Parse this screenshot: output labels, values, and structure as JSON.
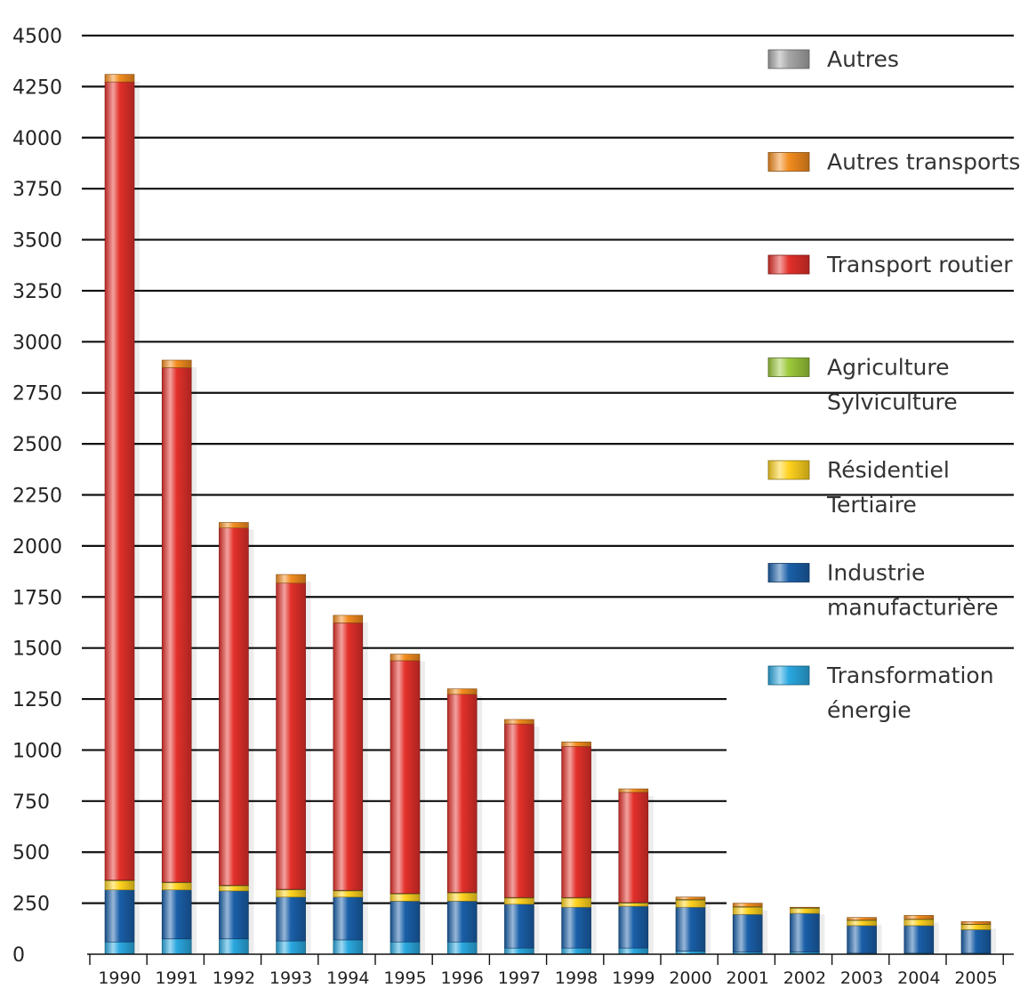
{
  "chart_data": {
    "type": "bar",
    "stacked": true,
    "title": "",
    "xlabel": "",
    "ylabel": "",
    "ylim": [
      0,
      4500
    ],
    "yticks": [
      0,
      250,
      500,
      750,
      1000,
      1250,
      1500,
      1750,
      2000,
      2250,
      2500,
      2750,
      3000,
      3250,
      3500,
      3750,
      4000,
      4250,
      4500
    ],
    "ytick_labels": [
      "0",
      "250",
      "500",
      "750",
      "1000",
      "1250",
      "1500",
      "1750",
      "2000",
      "2250",
      "2500",
      "2750",
      "3000",
      "3250",
      "3500",
      "3750",
      "4000",
      "4250",
      "4500"
    ],
    "grid": "horizontal",
    "legend_position": "right",
    "categories": [
      "1990",
      "1991",
      "1992",
      "1993",
      "1994",
      "1995",
      "1996",
      "1997",
      "1998",
      "1999",
      "2000",
      "2001",
      "2002",
      "2003",
      "2004",
      "2005"
    ],
    "series": [
      {
        "name": "Transformation énergie",
        "color": "#2aa8e0",
        "values": [
          60,
          75,
          75,
          65,
          70,
          60,
          60,
          30,
          30,
          30,
          15,
          10,
          10,
          5,
          5,
          5
        ]
      },
      {
        "name": "Industrie manufacturière",
        "color": "#1a5fa8",
        "values": [
          255,
          240,
          235,
          215,
          210,
          200,
          200,
          215,
          200,
          205,
          215,
          185,
          190,
          135,
          135,
          115
        ]
      },
      {
        "name": "Résidentiel Tertiaire",
        "color": "#ffd21f",
        "values": [
          45,
          35,
          25,
          35,
          30,
          35,
          40,
          30,
          45,
          15,
          35,
          35,
          25,
          25,
          30,
          25
        ]
      },
      {
        "name": "Agriculture Sylviculture",
        "color": "#9cc93a",
        "values": [
          3,
          3,
          3,
          3,
          3,
          3,
          3,
          3,
          3,
          3,
          3,
          3,
          2,
          2,
          2,
          2
        ]
      },
      {
        "name": "Transport routier",
        "color": "#e3302a",
        "values": [
          3910,
          2520,
          1750,
          1500,
          1310,
          1140,
          970,
          850,
          740,
          540,
          0,
          0,
          0,
          0,
          0,
          0
        ]
      },
      {
        "name": "Autres transports",
        "color": "#f28c1e",
        "values": [
          37,
          37,
          27,
          42,
          37,
          32,
          27,
          22,
          22,
          17,
          12,
          17,
          3,
          13,
          18,
          13
        ]
      },
      {
        "name": "Autres",
        "color": "#a6a6a6",
        "values": [
          0,
          0,
          0,
          0,
          0,
          0,
          0,
          0,
          0,
          0,
          0,
          0,
          0,
          0,
          0,
          0
        ]
      }
    ],
    "legend": [
      {
        "label_lines": [
          "Autres"
        ],
        "color": "#a6a6a6"
      },
      {
        "label_lines": [
          "Autres transports"
        ],
        "color": "#f28c1e"
      },
      {
        "label_lines": [
          "Transport routier"
        ],
        "color": "#e3302a"
      },
      {
        "label_lines": [
          "Agriculture",
          "Sylviculture"
        ],
        "color": "#9cc93a"
      },
      {
        "label_lines": [
          "Résidentiel",
          "Tertiaire"
        ],
        "color": "#ffd21f"
      },
      {
        "label_lines": [
          "Industrie",
          "manufacturière"
        ],
        "color": "#1a5fa8"
      },
      {
        "label_lines": [
          "Transformation",
          "énergie"
        ],
        "color": "#2aa8e0"
      }
    ]
  }
}
